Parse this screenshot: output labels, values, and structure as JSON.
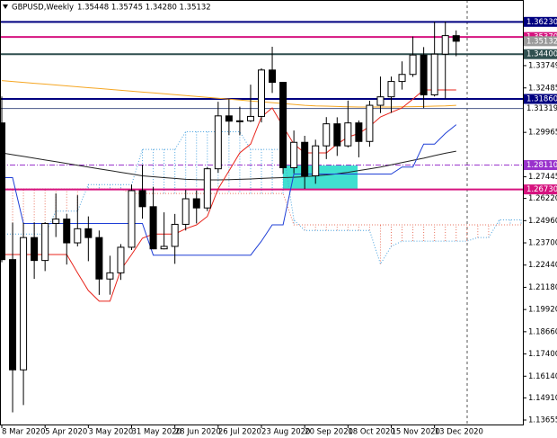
{
  "chart_data": {
    "type": "candlestick",
    "title": "GBPUSD,Weekly",
    "subtitle": "1.35448 1.35745 1.34280 1.35132",
    "categories": [
      "8 Mar 2020",
      null,
      null,
      null,
      "5 Apr 2020",
      null,
      null,
      null,
      "3 May 2020",
      null,
      null,
      null,
      "31 May 2020",
      null,
      null,
      null,
      "28 Jun 2020",
      null,
      null,
      null,
      "26 Jul 2020",
      null,
      null,
      null,
      "23 Aug 2020",
      null,
      null,
      null,
      "20 Sep 2020",
      null,
      null,
      null,
      "18 Oct 2020",
      null,
      null,
      null,
      "15 Nov 2020",
      null,
      null,
      null,
      "13 Dec 2020",
      null,
      null,
      null,
      null,
      null,
      null,
      null,
      null
    ],
    "open": [
      1.305,
      1.2275,
      1.165,
      1.24,
      1.227,
      1.248,
      1.2505,
      1.237,
      1.245,
      1.24,
      1.2165,
      1.22,
      1.2345,
      1.2666,
      1.2575,
      1.2336,
      1.235,
      1.2475,
      1.262,
      1.2568,
      1.279,
      1.309,
      1.306,
      1.3062,
      1.3087,
      1.335,
      1.328,
      1.2796,
      1.294,
      1.275,
      1.292,
      1.3045,
      1.292,
      1.305,
      1.2945,
      1.315,
      1.3198,
      1.3285,
      1.3325,
      1.3435,
      1.3209,
      1.344,
      1.35448,
      null,
      null,
      null,
      null,
      null,
      null
    ],
    "high": [
      1.32,
      1.2485,
      1.2484,
      1.2486,
      1.2487,
      1.265,
      1.2535,
      1.264,
      1.252,
      1.244,
      1.2297,
      1.2363,
      1.27,
      1.2813,
      1.2688,
      1.2543,
      1.2534,
      1.267,
      1.2667,
      1.28,
      1.317,
      1.3185,
      1.3142,
      1.3267,
      1.336,
      1.3482,
      1.3283,
      1.3007,
      1.2977,
      1.2955,
      1.3083,
      1.3082,
      1.3177,
      1.3064,
      1.3176,
      1.3313,
      1.3313,
      1.3399,
      1.354,
      1.348,
      1.3624,
      1.3625,
      1.35745,
      null,
      null,
      null,
      null,
      null,
      null
    ],
    "low": [
      1.226,
      1.1409,
      1.145,
      1.2166,
      1.221,
      1.2403,
      1.2247,
      1.235,
      1.2266,
      1.2075,
      1.2076,
      1.216,
      1.2329,
      1.2507,
      1.2334,
      1.2333,
      1.2251,
      1.244,
      1.248,
      1.255,
      1.2767,
      1.2981,
      1.298,
      1.3055,
      1.3053,
      1.322,
      1.2762,
      1.2764,
      1.2676,
      1.2705,
      1.2845,
      1.2863,
      1.2911,
      1.2855,
      1.2915,
      1.3106,
      1.3107,
      1.3239,
      1.3311,
      1.3134,
      1.32,
      1.3188,
      1.3428,
      null,
      null,
      null,
      null,
      null,
      null
    ],
    "close": [
      1.2275,
      1.165,
      1.24,
      1.227,
      1.248,
      1.2505,
      1.237,
      1.245,
      1.24,
      1.2165,
      1.22,
      1.2345,
      1.2666,
      1.2575,
      1.2336,
      1.235,
      1.2475,
      1.262,
      1.2568,
      1.279,
      1.309,
      1.306,
      1.3062,
      1.3087,
      1.335,
      1.328,
      1.2796,
      1.294,
      1.275,
      1.292,
      1.3045,
      1.292,
      1.305,
      1.2945,
      1.315,
      1.3198,
      1.3285,
      1.3325,
      1.3435,
      1.3209,
      1.344,
      1.3545,
      1.35132,
      null,
      null,
      null,
      null,
      null,
      null
    ],
    "cloud": [
      {
        "color": "#4aa3df",
        "style": "dotted",
        "values": [
          1.242,
          1.242,
          1.242,
          1.242,
          1.242,
          1.255,
          1.255,
          1.255,
          1.27,
          1.27,
          1.27,
          1.27,
          1.27,
          1.29,
          1.29,
          1.29,
          1.29,
          1.3,
          1.3,
          1.3,
          1.3,
          1.3,
          1.3,
          1.29,
          1.29,
          1.29,
          1.29,
          1.25,
          1.244,
          1.244,
          1.244,
          1.244,
          1.244,
          1.244,
          1.244,
          1.225,
          1.235,
          1.238,
          1.238,
          1.238,
          1.238,
          1.238,
          1.238,
          1.238,
          1.24,
          1.24,
          1.25,
          1.25,
          1.25
        ]
      },
      {
        "color": "#e9735f",
        "style": "dotted",
        "values": [
          1.2676,
          1.2676,
          1.2676,
          1.2676,
          1.2676,
          1.2676,
          1.2676,
          1.2676,
          1.2676,
          1.2676,
          1.2676,
          1.2676,
          1.265,
          1.265,
          1.265,
          1.265,
          1.265,
          1.265,
          1.265,
          1.265,
          1.265,
          1.265,
          1.265,
          1.265,
          1.265,
          1.265,
          1.265,
          1.2472,
          1.2472,
          1.2472,
          1.2472,
          1.2472,
          1.2472,
          1.2472,
          1.2472,
          1.2472,
          1.2472,
          1.2472,
          1.2472,
          1.2472,
          1.2472,
          1.2472,
          1.2472,
          1.2472,
          1.2472,
          1.2472,
          1.2472,
          1.2472,
          1.2472
        ]
      }
    ],
    "series": [
      {
        "color": "#f5a623",
        "style": "solid",
        "values": [
          1.329,
          1.3285,
          1.328,
          1.3275,
          1.327,
          1.3265,
          1.326,
          1.3255,
          1.325,
          1.3245,
          1.324,
          1.3235,
          1.323,
          1.3225,
          1.322,
          1.3215,
          1.321,
          1.3205,
          1.32,
          1.3195,
          1.319,
          1.3185,
          1.318,
          1.3175,
          1.317,
          1.3165,
          1.316,
          1.3155,
          1.315,
          1.3147,
          1.3145,
          1.3143,
          1.3141,
          1.314,
          1.314,
          1.314,
          1.314,
          1.3141,
          1.3142,
          1.3143,
          1.3145,
          1.3147,
          1.315,
          null,
          null,
          null,
          null,
          null,
          null
        ]
      },
      {
        "color": "#222222",
        "style": "solid",
        "values": [
          1.288,
          1.287,
          1.286,
          1.285,
          1.284,
          1.283,
          1.282,
          1.281,
          1.28,
          1.279,
          1.278,
          1.277,
          1.276,
          1.275,
          1.2745,
          1.274,
          1.2735,
          1.273,
          1.2728,
          1.2727,
          1.2727,
          1.2728,
          1.273,
          1.2732,
          1.2735,
          1.2738,
          1.274,
          1.2742,
          1.2745,
          1.275,
          1.2755,
          1.2762,
          1.277,
          1.278,
          1.279,
          1.28,
          1.2812,
          1.2825,
          1.2838,
          1.285,
          1.2865,
          1.2878,
          1.289,
          null,
          null,
          null,
          null,
          null,
          null
        ]
      },
      {
        "color": "#e8241b",
        "style": "solid",
        "values": [
          1.2304,
          1.2304,
          1.2304,
          1.2304,
          1.2304,
          1.2304,
          1.2304,
          1.22,
          1.21,
          1.2039,
          1.2039,
          1.2217,
          1.2304,
          1.2396,
          1.242,
          1.242,
          1.242,
          1.245,
          1.2472,
          1.252,
          1.2676,
          1.2778,
          1.288,
          1.293,
          1.3084,
          1.3135,
          1.303,
          1.293,
          1.288,
          1.288,
          1.288,
          1.293,
          1.297,
          1.299,
          1.303,
          1.3084,
          1.311,
          1.3135,
          1.3185,
          1.3237,
          1.3237,
          1.3237,
          1.3237,
          null,
          null,
          null,
          null,
          null,
          null
        ]
      },
      {
        "color": "#1f3fd6",
        "style": "solid",
        "values": [
          1.274,
          1.274,
          1.248,
          1.248,
          1.248,
          1.248,
          1.248,
          1.248,
          1.248,
          1.248,
          1.248,
          1.248,
          1.248,
          1.248,
          1.23,
          1.23,
          1.23,
          1.23,
          1.23,
          1.23,
          1.23,
          1.23,
          1.23,
          1.23,
          1.238,
          1.2472,
          1.2472,
          1.276,
          1.276,
          1.276,
          1.276,
          1.276,
          1.276,
          1.276,
          1.276,
          1.276,
          1.276,
          1.28,
          1.28,
          1.293,
          1.293,
          1.299,
          1.304,
          null,
          null,
          null,
          null,
          null,
          null
        ]
      }
    ],
    "levels": [
      {
        "value": 1.3623,
        "label": "1.36230",
        "color": "#000080",
        "style": "solid",
        "box": true
      },
      {
        "value": 1.3537,
        "label": "1.35370",
        "color": "#d6137f",
        "style": "solid",
        "box": true
      },
      {
        "value": 1.35132,
        "label": "1.35132",
        "color": "#9a9a9a",
        "style": "none",
        "box": true
      },
      {
        "value": 1.344,
        "label": "1.34400",
        "color": "#2f4f4f",
        "style": "solid",
        "box": true
      },
      {
        "value": 1.3186,
        "label": "1.31860",
        "color": "#000080",
        "style": "solid",
        "box": true
      },
      {
        "value": 1.31319,
        "label": "1.31319",
        "color": "#4a5a8a",
        "style": "thin",
        "box": false
      },
      {
        "value": 1.2811,
        "label": "1.28110",
        "color": "#9932cc",
        "style": "dashdot",
        "box": true
      },
      {
        "value": 1.2673,
        "label": "1.26730",
        "color": "#d6137f",
        "style": "solid",
        "box": true
      }
    ],
    "ylim": [
      1.134,
      1.3747
    ],
    "yticks": [
      1.33749,
      1.32485,
      1.29965,
      1.27445,
      {
        "value": 1.2622,
        "label": "1.26220"
      },
      {
        "value": 1.2496,
        "label": "1.24960"
      },
      {
        "value": 1.237,
        "label": "1.23700"
      },
      {
        "value": 1.2244,
        "label": "1.22440"
      },
      {
        "value": 1.2118,
        "label": "1.21180"
      },
      {
        "value": 1.1992,
        "label": "1.19920"
      },
      {
        "value": 1.1866,
        "label": "1.18660"
      },
      {
        "value": 1.174,
        "label": "1.17400"
      },
      {
        "value": 1.1614,
        "label": "1.16140"
      },
      {
        "value": 1.1491,
        "label": "1.14910"
      },
      1.13655
    ],
    "grid": false
  }
}
